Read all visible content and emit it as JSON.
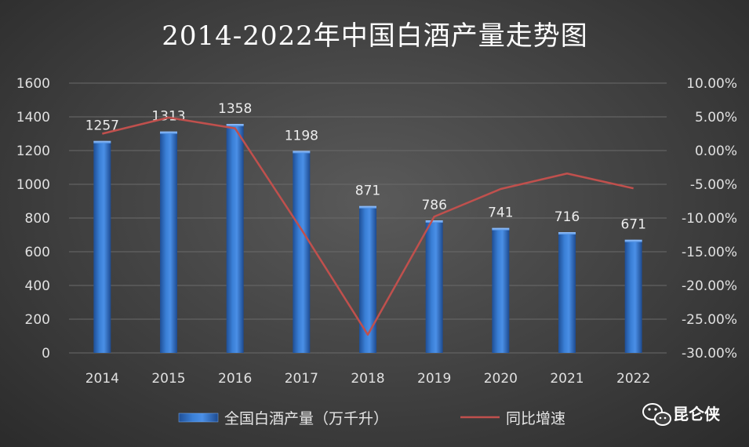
{
  "chart_data": {
    "type": "bar",
    "title": "2014-2022年中国白酒产量走势图",
    "categories": [
      "2014",
      "2015",
      "2016",
      "2017",
      "2018",
      "2019",
      "2020",
      "2021",
      "2022"
    ],
    "series": [
      {
        "name": "全国白酒产量（万千升）",
        "type": "bar",
        "axis": "left",
        "values": [
          1257,
          1313,
          1358,
          1198,
          871,
          786,
          741,
          716,
          671
        ],
        "color": "#2e6fc4"
      },
      {
        "name": "同比增速",
        "type": "line",
        "axis": "right",
        "values": [
          2.5,
          4.9,
          3.3,
          -11.7,
          -27.3,
          -9.8,
          -5.7,
          -3.4,
          -5.6
        ],
        "color": "#c0504d"
      }
    ],
    "y_left": {
      "min": 0,
      "max": 1600,
      "ticks": [
        "0",
        "200",
        "400",
        "600",
        "800",
        "1000",
        "1200",
        "1400",
        "1600"
      ]
    },
    "y_right": {
      "min": -30,
      "max": 10,
      "ticks": [
        "-30.00%",
        "-25.00%",
        "-20.00%",
        "-15.00%",
        "-10.00%",
        "-5.00%",
        "0.00%",
        "5.00%",
        "10.00%"
      ]
    },
    "grid": true,
    "legend": "bottom"
  },
  "watermark": {
    "text": "昆仑侠",
    "icon": "wechat-icon"
  }
}
